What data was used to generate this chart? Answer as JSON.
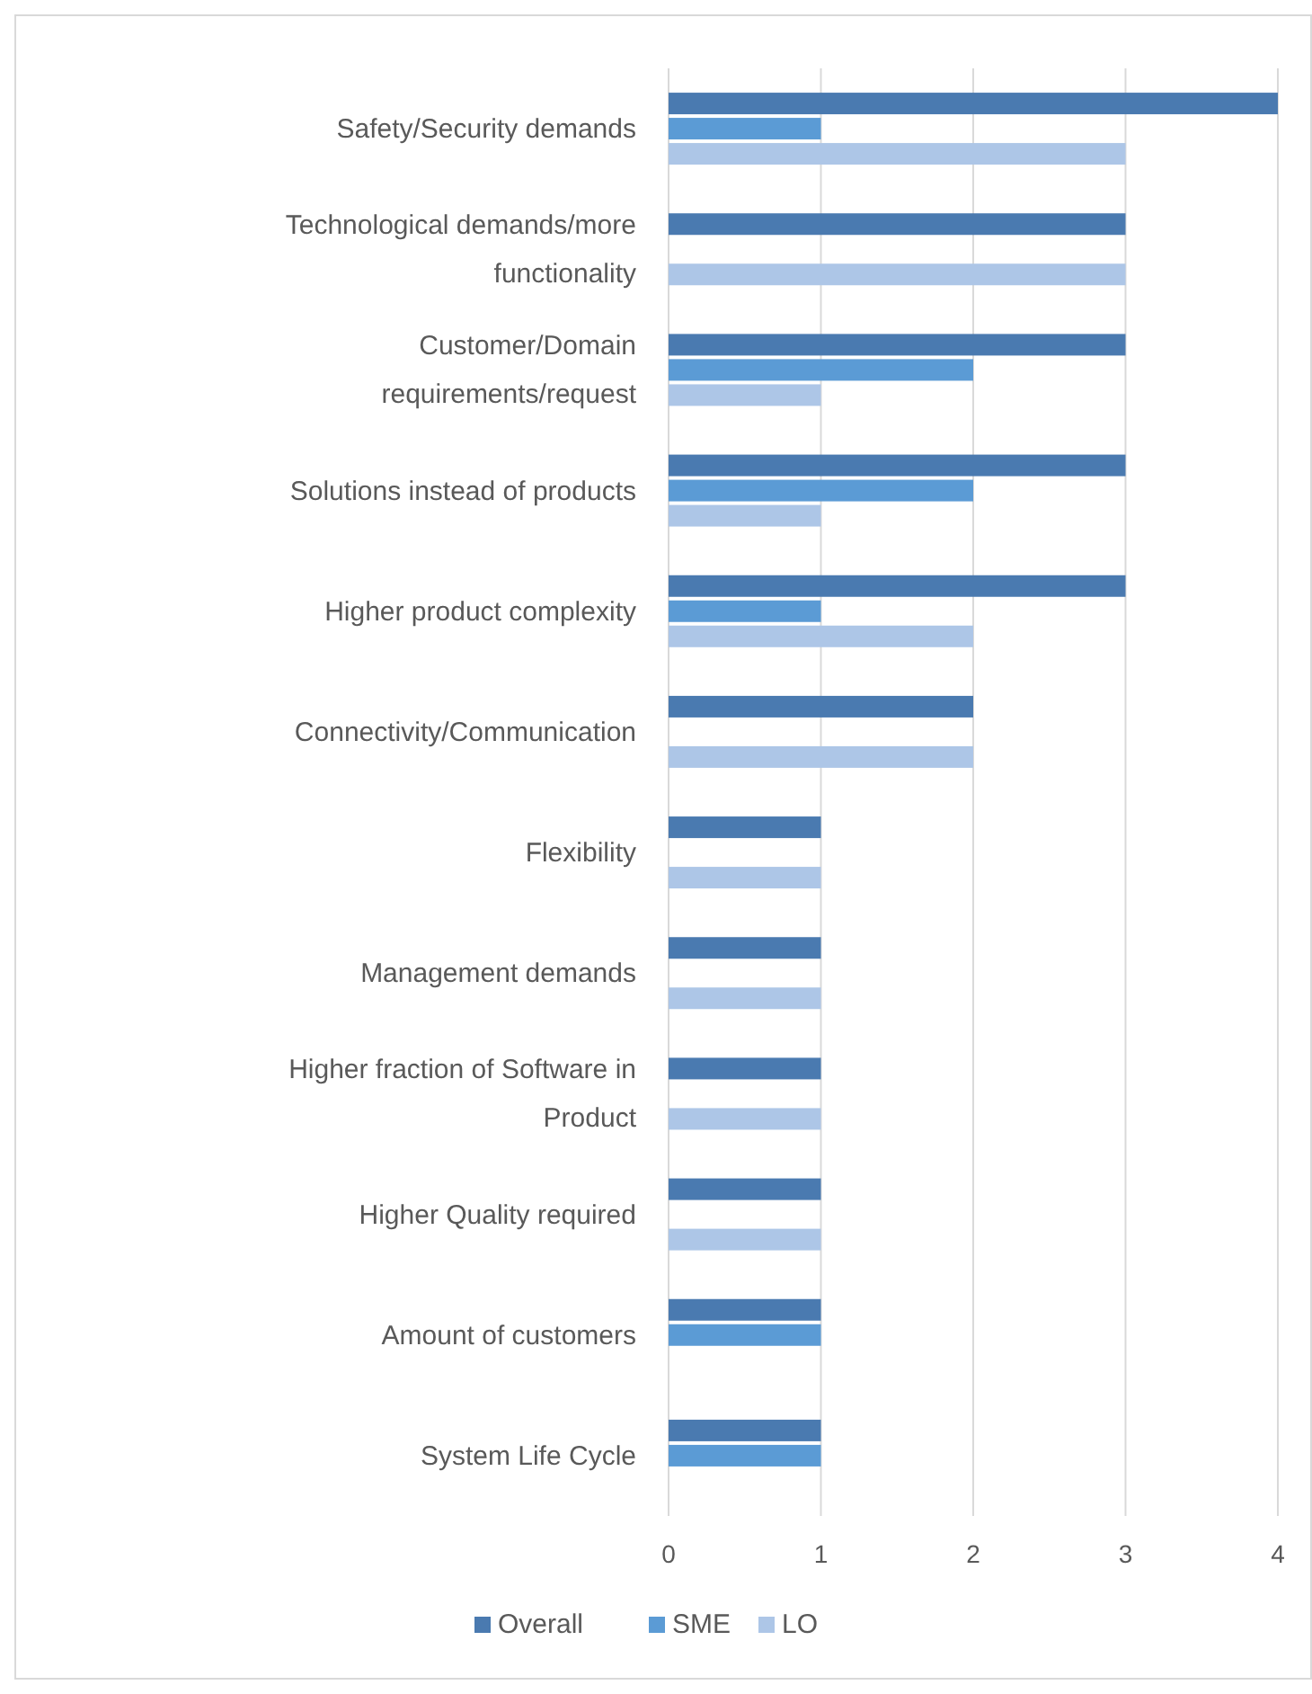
{
  "chart_data": {
    "type": "bar",
    "orientation": "horizontal",
    "categories": [
      "Safety/Security demands",
      "Technological demands/more functionality",
      "Customer/Domain requirements/request",
      "Solutions instead of products",
      "Higher product complexity",
      "Connectivity/Communication",
      "Flexibility",
      "Management demands",
      "Higher fraction of Software in Product",
      "Higher Quality required",
      "Amount of customers",
      "System Life Cycle"
    ],
    "series": [
      {
        "name": "Overall",
        "color": "#4a7ab0",
        "values": [
          4,
          3,
          3,
          3,
          3,
          2,
          1,
          1,
          1,
          1,
          1,
          1
        ]
      },
      {
        "name": "SME",
        "color": "#5b9bd5",
        "values": [
          1,
          null,
          2,
          2,
          1,
          null,
          null,
          null,
          null,
          null,
          1,
          1
        ]
      },
      {
        "name": "LO",
        "color": "#adc6e7",
        "values": [
          3,
          3,
          1,
          1,
          2,
          2,
          1,
          1,
          1,
          1,
          null,
          null
        ]
      }
    ],
    "xlim": [
      0,
      4
    ],
    "xticks": [
      0,
      1,
      2,
      3,
      4
    ],
    "grid": "x",
    "legend": "bottom"
  }
}
